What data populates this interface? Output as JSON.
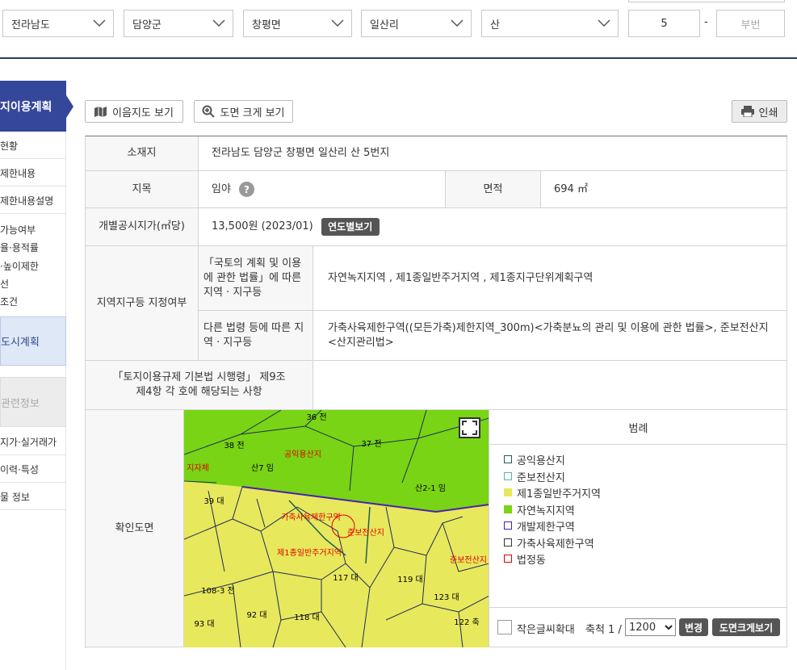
{
  "search": {
    "selects": [
      "전라남도",
      "담양군",
      "창평면",
      "일산리",
      "산"
    ],
    "main_number": "5",
    "dash": "-",
    "sub_number_placeholder": "부번"
  },
  "sidebar": {
    "active": "지이용계획",
    "items_a": [
      "현황",
      "제한내용",
      "제한내용설명"
    ],
    "items_b": [
      "가능여부",
      "율·용적률",
      "·높이제한",
      "선",
      "조건"
    ],
    "box_1": "도시계획",
    "box_2": "관련정보",
    "items_c": [
      "지가·실거래가",
      "이력·특성",
      "물 정보"
    ]
  },
  "toolbar": {
    "map_button": "이음지도 보기",
    "zoom_button": "도면 크게 보기",
    "print": "인쇄"
  },
  "table": {
    "location_label": "소재지",
    "location": "전라남도 담양군 창평면 일산리 산 5번지",
    "jimok_label": "지목",
    "jimok": "임야",
    "help_icon": "?",
    "area_label": "면적",
    "area": "694 ㎡",
    "price_label": "개별공시지가(㎡당)",
    "price": "13,500원 (2023/01)",
    "price_button": "연도별보기",
    "zone_label": "지역지구등 지정여부",
    "zone_law_label": "「국토의 계획 및 이용에 관한 법률」에 따른 지역 · 지구등",
    "zone_law": "자연녹지지역 , 제1종일반주거지역 , 제1종지구단위계획구역",
    "zone_other_label": "다른 법령 등에 따른 지역 · 지구등",
    "zone_other": "가축사육제한구역((모든가축)제한지역_300m)<가축분뇨의 관리 및 이용에 관한 법률>, 준보전산지 <산지관리법>",
    "decree_label": "「토지이용규제 기본법 시행령」 제9조 제4항 각 호에 해당되는 사항",
    "map_label": "확인도면"
  },
  "map": {
    "labels": [
      {
        "text": "36 전",
        "color": "#000000"
      },
      {
        "text": "38 전",
        "color": "#000000"
      },
      {
        "text": "37 전",
        "color": "#000000"
      },
      {
        "text": "공익용산지",
        "color": "#e00000"
      },
      {
        "text": "지자체",
        "color": "#e00000"
      },
      {
        "text": "산7 임",
        "color": "#000000"
      },
      {
        "text": "산2-1 임",
        "color": "#000000"
      },
      {
        "text": "39 대",
        "color": "#000000"
      },
      {
        "text": "가축사육제한구역",
        "color": "#e00000"
      },
      {
        "text": "준보전산지",
        "color": "#e00000"
      },
      {
        "text": "제1종일반주거지역",
        "color": "#e00000"
      },
      {
        "text": "117 대",
        "color": "#000000"
      },
      {
        "text": "119 대",
        "color": "#000000"
      },
      {
        "text": "준보전산지",
        "color": "#e00000"
      },
      {
        "text": "108-3 전",
        "color": "#000000"
      },
      {
        "text": "92 대",
        "color": "#000000"
      },
      {
        "text": "93 대",
        "color": "#000000"
      },
      {
        "text": "118 대",
        "color": "#000000"
      },
      {
        "text": "123 대",
        "color": "#000000"
      },
      {
        "text": "122 축",
        "color": "#000000"
      }
    ]
  },
  "legend": {
    "title": "범례",
    "items": [
      {
        "label": "공익용산지",
        "color": "#1f5f55",
        "style": "outline"
      },
      {
        "label": "준보전산지",
        "color": "#55b8a8",
        "style": "outline"
      },
      {
        "label": "제1종일반주거지역",
        "color": "#e8e85c",
        "style": "fill"
      },
      {
        "label": "자연녹지지역",
        "color": "#78d414",
        "style": "fill"
      },
      {
        "label": "개발제한구역",
        "color": "#4a1fb0",
        "style": "outline"
      },
      {
        "label": "가축사육제한구역",
        "color": "#333333",
        "style": "outline"
      },
      {
        "label": "법정동",
        "color": "#e00000",
        "style": "outline"
      }
    ]
  },
  "map_controls": {
    "checkbox_label": "작은글씨확대",
    "scale_label": "축척 1 /",
    "scale": "1200",
    "change_button": "변경",
    "large_button": "도면크게보기"
  }
}
